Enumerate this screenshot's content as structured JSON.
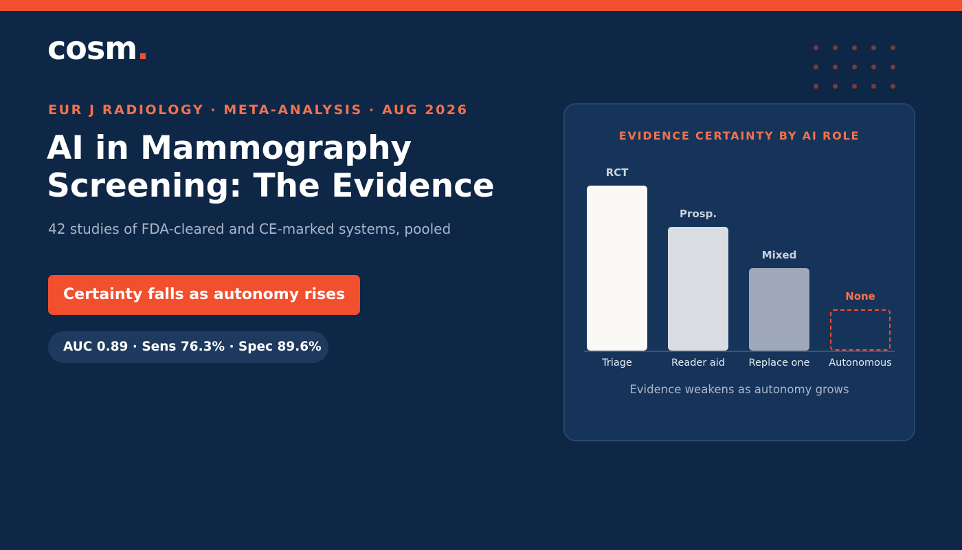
{
  "brand": {
    "name": "cosm",
    "dot": "."
  },
  "header": {
    "eyebrow": "EUR J RADIOLOGY · META-ANALYSIS · AUG 2026",
    "title": "AI in Mammography Screening: The Evidence",
    "subtitle": "42 studies of FDA-cleared and CE-marked systems, pooled"
  },
  "cta": {
    "label": "Certainty falls as autonomy rises"
  },
  "stats": {
    "label": "AUC 0.89 · Sens 76.3% · Spec 89.6%"
  },
  "colors": {
    "accent": "#f24f2f",
    "background": "#0f2747",
    "card": "#16345a"
  },
  "chart_data": {
    "type": "bar",
    "title": "EVIDENCE CERTAINTY BY AI ROLE",
    "categories": [
      "Triage",
      "Reader aid",
      "Replace one",
      "Autonomous"
    ],
    "bar_labels": [
      "RCT",
      "Prosp.",
      "Mixed",
      "None"
    ],
    "values": [
      4,
      3,
      2,
      1
    ],
    "ylim": [
      0,
      4
    ],
    "bar_colors": [
      "#faf9f5",
      "#d9dce0",
      "#9ea8b8",
      "none"
    ],
    "label_colors": [
      "#c9d2de",
      "#c9d2de",
      "#c9d2de",
      "#f2724e"
    ],
    "dashed": [
      false,
      false,
      false,
      true
    ],
    "caption": "Evidence weakens as autonomy grows"
  }
}
